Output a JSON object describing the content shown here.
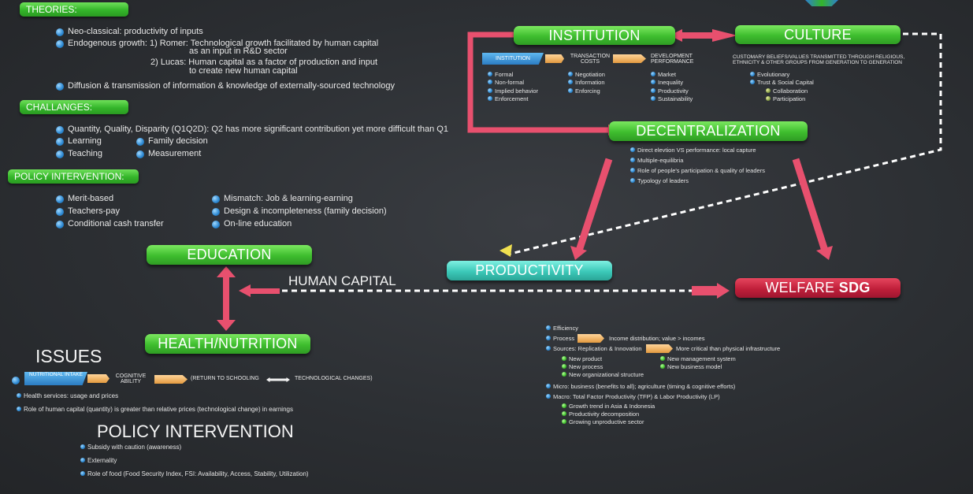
{
  "left": {
    "theories_header": "THEORIES:",
    "theories": {
      "item1": "Neo-classical: productivity of inputs",
      "item2_a": "Endogenous growth:  1) Romer: Technological growth facilitated by human capital",
      "item2_b": "as an input in R&D sector",
      "item2_c": "2) Lucas: Human capital as a factor of production and input",
      "item2_d": "to create new human capital",
      "item3": "Diffusion & transmission of information & knowledge of externally-sourced technology"
    },
    "challanges_header": "CHALLANGES:",
    "challanges": {
      "item1": "Quantity, Quality, Disparity (Q1Q2D): Q2 has more significant contribution yet more difficult than Q1",
      "learning": "Learning",
      "family_decision": "Family decision",
      "teaching": "Teaching",
      "measurement": "Measurement"
    },
    "policy_header": "POLICY INTERVENTION:",
    "policy": {
      "merit": "Merit-based",
      "teachers_pay": "Teachers-pay",
      "cash_transfer": "Conditional cash transfer",
      "mismatch": "Mismatch: Job & learning-earning",
      "design": "Design & incompleteness (family decision)",
      "online": "On-line education"
    }
  },
  "diagram": {
    "education": "EDUCATION",
    "health_nutrition": "HEALTH/NUTRITION",
    "human_capital": "HUMAN CAPITAL",
    "productivity": "PRODUCTIVITY",
    "welfare": "WELFARE",
    "welfare_sdg": "SDG",
    "institution": "INSTITUTION",
    "culture": "CULTURE",
    "decentralization": "DECENTRALIZATION"
  },
  "institution_detail": {
    "tag": "INSTITUTION",
    "transaction_costs": "TRANSACTION COSTS",
    "development_performance": "DEVELOPMENT PERFORMANCE",
    "col1": [
      "Formal",
      "Non-formal",
      "Implied behavior",
      "Enforcement"
    ],
    "col2": [
      "Negotiation",
      "Information",
      "Enforcing"
    ],
    "col3": [
      "Market",
      "Inequality",
      "Productivity",
      "Sustainability"
    ]
  },
  "culture_detail": {
    "desc1": "CUSTOMARY BELIEFS/VALUES TRANSMITTED THROUGH RELIGIOUS,",
    "desc2": "ETHNICITY & OTHER GROUPS FROM GENERATION TO GENERATION",
    "items": [
      "Evolutionary",
      "Trust & Social Capital"
    ],
    "subitems": [
      "Collaboration",
      "Participation"
    ]
  },
  "decentralization_detail": {
    "items": [
      "Direct elevtion VS performance: local capture",
      "Multiple-equilibria",
      "Role of people's participation & quality of leaders",
      "Typology of leaders"
    ]
  },
  "issues": {
    "title": "ISSUES",
    "nutritional_intake": "NUTRITIONAL INTAKE",
    "cognitive_ability": "COGNITIVE ABILITY",
    "return_to_schooling": "(RETURN TO SCHOOLING",
    "technological_changes": "TECHNOLOGICAL CHANGES)",
    "health_services": "Health services: usage and prices",
    "role_hc": "Role of human capital (quantity) is greater than relative prices (technological change) in earnings"
  },
  "policy_intervention_2": {
    "title": "POLICY INTERVENTION",
    "items": [
      "Subsidy with caution (awareness)",
      "Externality",
      "Role of food (Food Security Index, FSI: Availability, Access, Stability, Utilization)"
    ]
  },
  "productivity_detail": {
    "efficiency": "Efficiency",
    "process": "Process",
    "income_dist": "Income distribution; value > incomes",
    "sources": "Sources: Replication & Innovation",
    "more_critical": "More critical than physical infrastructure",
    "new_left": [
      "New product",
      "New process",
      "New organizational structure"
    ],
    "new_right": [
      "New management system",
      "New business model"
    ],
    "micro": "Micro: business (benefits to all); agriculture (timing & cognitive efforts)",
    "macro": "Macro: Total Factor Productivity (TFP) & Labor Productivity (LP)",
    "macro_sub": [
      "Growth trend in Asia & Indonesia",
      "Productivity decomposition",
      "Growing unproductive sector"
    ]
  },
  "colors": {
    "green": "#3ebd2e",
    "teal": "#3cc8b8",
    "red": "#c01f3a",
    "arrow_pink": "#e8506e",
    "bullet_blue": "#2b87d1"
  }
}
